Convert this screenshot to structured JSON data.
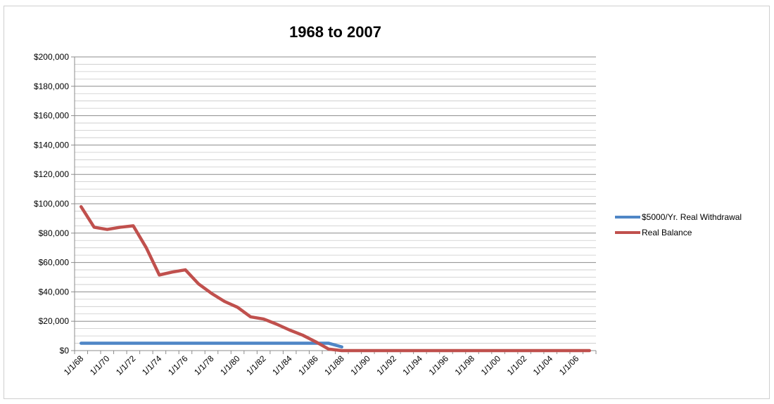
{
  "chart_data": {
    "type": "line",
    "title": "1968 to 2007",
    "xlabel": "",
    "ylabel": "",
    "ylim": [
      0,
      200000
    ],
    "y_major_step": 20000,
    "y_minor_step": 5000,
    "y_tick_labels": [
      "$0",
      "$20,000",
      "$40,000",
      "$60,000",
      "$80,000",
      "$100,000",
      "$120,000",
      "$140,000",
      "$160,000",
      "$180,000",
      "$200,000"
    ],
    "x_tick_labels": [
      "1/1/68",
      "1/1/70",
      "1/1/72",
      "1/1/74",
      "1/1/76",
      "1/1/78",
      "1/1/80",
      "1/1/82",
      "1/1/84",
      "1/1/86",
      "1/1/88",
      "1/1/90",
      "1/1/92",
      "1/1/94",
      "1/1/96",
      "1/1/98",
      "1/1/00",
      "1/1/02",
      "1/1/04",
      "1/1/06"
    ],
    "categories": [
      "1968",
      "1969",
      "1970",
      "1971",
      "1972",
      "1973",
      "1974",
      "1975",
      "1976",
      "1977",
      "1978",
      "1979",
      "1980",
      "1981",
      "1982",
      "1983",
      "1984",
      "1985",
      "1986",
      "1987",
      "1988",
      "1989",
      "1990",
      "1991",
      "1992",
      "1993",
      "1994",
      "1995",
      "1996",
      "1997",
      "1998",
      "1999",
      "2000",
      "2001",
      "2002",
      "2003",
      "2004",
      "2005",
      "2006",
      "2007"
    ],
    "grid": true,
    "legend_position": "right",
    "series": [
      {
        "name": "$5000/Yr. Real Withdrawal",
        "color": "#4f86c6",
        "values": [
          5000,
          5000,
          5000,
          5000,
          5000,
          5000,
          5000,
          5000,
          5000,
          5000,
          5000,
          5000,
          5000,
          5000,
          5000,
          5000,
          5000,
          5000,
          5000,
          5000,
          2500,
          null,
          null,
          null,
          null,
          null,
          null,
          null,
          null,
          null,
          null,
          null,
          null,
          null,
          null,
          null,
          null,
          null,
          null,
          null
        ]
      },
      {
        "name": "Real Balance",
        "color": "#c0504d",
        "values": [
          98000,
          84000,
          82500,
          84000,
          85000,
          70000,
          51500,
          53500,
          55000,
          45500,
          39000,
          33500,
          29500,
          23000,
          21500,
          18000,
          14000,
          10500,
          6000,
          1000,
          0,
          0,
          0,
          0,
          0,
          0,
          0,
          0,
          0,
          0,
          0,
          0,
          0,
          0,
          0,
          0,
          0,
          0,
          0,
          0
        ]
      }
    ]
  }
}
